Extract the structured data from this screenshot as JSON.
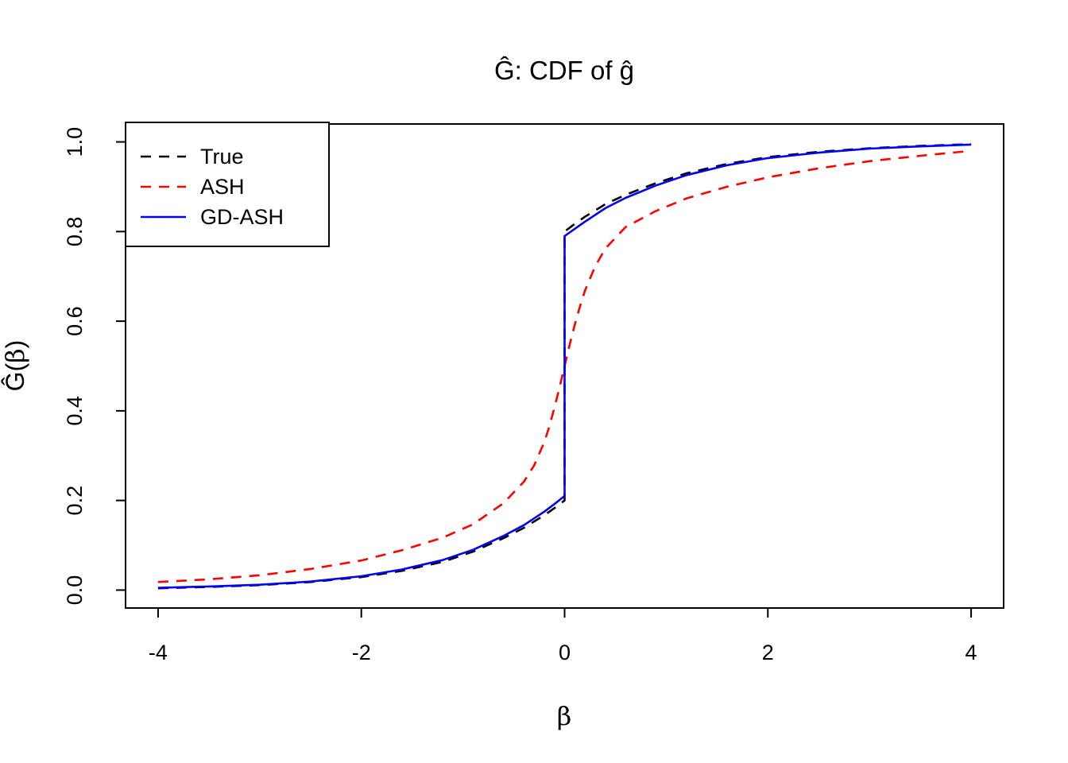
{
  "chart_data": {
    "type": "line",
    "title": "Ĝ: CDF of ĝ",
    "xlabel": "β",
    "ylabel": "Ĝ(β)",
    "xlim": [
      -4,
      4
    ],
    "ylim": [
      0,
      1
    ],
    "x_ticks": [
      -4,
      -2,
      0,
      2,
      4
    ],
    "x_tick_labels": [
      "-4",
      "-2",
      "0",
      "2",
      "4"
    ],
    "y_ticks": [
      0,
      0.2,
      0.4,
      0.6,
      0.8,
      1.0
    ],
    "y_tick_labels": [
      "0.0",
      "0.2",
      "0.4",
      "0.6",
      "0.8",
      "1.0"
    ],
    "grid": false,
    "legend_position": "topleft",
    "series": [
      {
        "name": "True",
        "color": "#000000",
        "line_style": "dashed",
        "jump_at_zero": [
          0.2,
          0.8
        ],
        "points": [
          [
            -4,
            0.004
          ],
          [
            -3.5,
            0.007
          ],
          [
            -3,
            0.011
          ],
          [
            -2.5,
            0.018
          ],
          [
            -2,
            0.029
          ],
          [
            -1.6,
            0.043
          ],
          [
            -1.2,
            0.063
          ],
          [
            -0.9,
            0.086
          ],
          [
            -0.6,
            0.116
          ],
          [
            -0.4,
            0.139
          ],
          [
            -0.2,
            0.167
          ],
          [
            -0.1,
            0.183
          ],
          [
            0,
            0.2
          ],
          [
            0,
            0.8
          ],
          [
            0.1,
            0.817
          ],
          [
            0.2,
            0.833
          ],
          [
            0.4,
            0.861
          ],
          [
            0.6,
            0.882
          ],
          [
            0.9,
            0.908
          ],
          [
            1.2,
            0.93
          ],
          [
            1.6,
            0.951
          ],
          [
            2,
            0.966
          ],
          [
            2.5,
            0.978
          ],
          [
            3,
            0.986
          ],
          [
            3.5,
            0.991
          ],
          [
            4,
            0.995
          ]
        ]
      },
      {
        "name": "ASH",
        "color": "#FF0000",
        "line_style": "dashed",
        "jump_at_zero": null,
        "points": [
          [
            -4,
            0.018
          ],
          [
            -3.5,
            0.024
          ],
          [
            -3,
            0.033
          ],
          [
            -2.5,
            0.047
          ],
          [
            -2,
            0.066
          ],
          [
            -1.6,
            0.089
          ],
          [
            -1.2,
            0.117
          ],
          [
            -0.9,
            0.147
          ],
          [
            -0.6,
            0.194
          ],
          [
            -0.4,
            0.242
          ],
          [
            -0.3,
            0.278
          ],
          [
            -0.2,
            0.33
          ],
          [
            -0.15,
            0.365
          ],
          [
            -0.1,
            0.407
          ],
          [
            -0.05,
            0.452
          ],
          [
            0,
            0.5
          ],
          [
            0.05,
            0.548
          ],
          [
            0.1,
            0.592
          ],
          [
            0.15,
            0.632
          ],
          [
            0.2,
            0.668
          ],
          [
            0.3,
            0.722
          ],
          [
            0.4,
            0.762
          ],
          [
            0.6,
            0.81
          ],
          [
            0.9,
            0.846
          ],
          [
            1.2,
            0.874
          ],
          [
            1.6,
            0.9
          ],
          [
            2,
            0.921
          ],
          [
            2.5,
            0.941
          ],
          [
            3,
            0.957
          ],
          [
            3.5,
            0.969
          ],
          [
            4,
            0.98
          ]
        ]
      },
      {
        "name": "GD-ASH",
        "color": "#0000FF",
        "line_style": "solid",
        "jump_at_zero": [
          0.21,
          0.79
        ],
        "points": [
          [
            -4,
            0.005
          ],
          [
            -3.5,
            0.008
          ],
          [
            -3,
            0.012
          ],
          [
            -2.5,
            0.019
          ],
          [
            -2,
            0.031
          ],
          [
            -1.6,
            0.046
          ],
          [
            -1.2,
            0.067
          ],
          [
            -0.9,
            0.09
          ],
          [
            -0.6,
            0.121
          ],
          [
            -0.4,
            0.145
          ],
          [
            -0.2,
            0.175
          ],
          [
            -0.1,
            0.192
          ],
          [
            0,
            0.21
          ],
          [
            0,
            0.79
          ],
          [
            0.1,
            0.806
          ],
          [
            0.2,
            0.822
          ],
          [
            0.4,
            0.852
          ],
          [
            0.6,
            0.875
          ],
          [
            0.9,
            0.903
          ],
          [
            1.2,
            0.926
          ],
          [
            1.6,
            0.948
          ],
          [
            2,
            0.964
          ],
          [
            2.5,
            0.976
          ],
          [
            3,
            0.985
          ],
          [
            3.5,
            0.99
          ],
          [
            4,
            0.994
          ]
        ]
      }
    ]
  }
}
